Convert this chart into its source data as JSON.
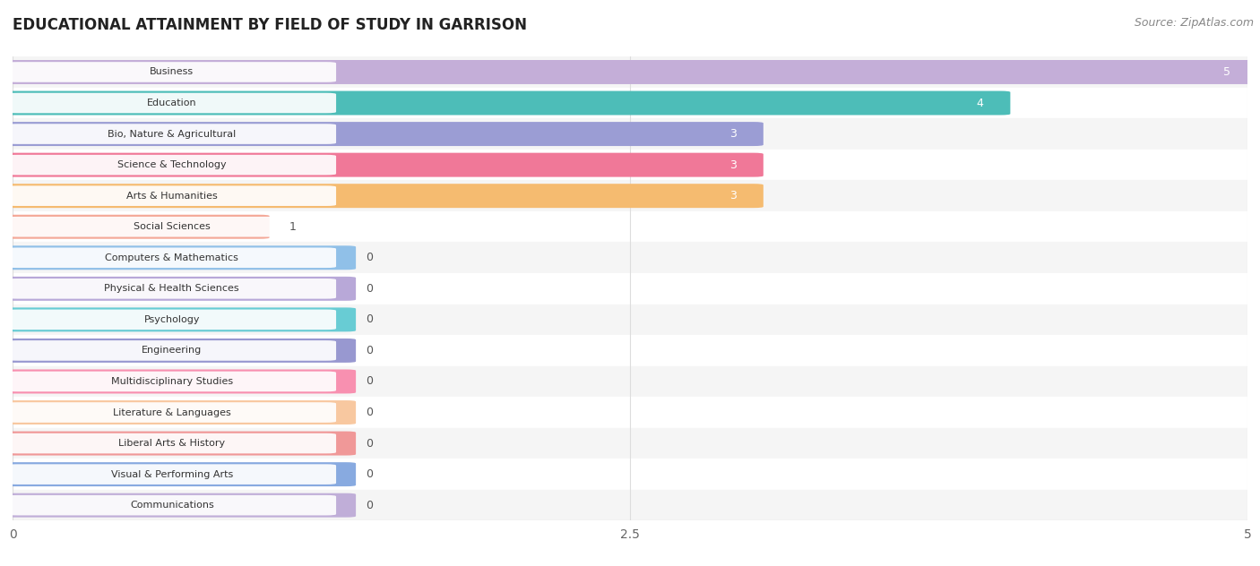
{
  "title": "EDUCATIONAL ATTAINMENT BY FIELD OF STUDY IN GARRISON",
  "source": "Source: ZipAtlas.com",
  "categories": [
    "Business",
    "Education",
    "Bio, Nature & Agricultural",
    "Science & Technology",
    "Arts & Humanities",
    "Social Sciences",
    "Computers & Mathematics",
    "Physical & Health Sciences",
    "Psychology",
    "Engineering",
    "Multidisciplinary Studies",
    "Literature & Languages",
    "Liberal Arts & History",
    "Visual & Performing Arts",
    "Communications"
  ],
  "values": [
    5,
    4,
    3,
    3,
    3,
    1,
    0,
    0,
    0,
    0,
    0,
    0,
    0,
    0,
    0
  ],
  "bar_colors": [
    "#c4aed8",
    "#4dbdb8",
    "#9b9dd4",
    "#f07898",
    "#f5bb70",
    "#f4a898",
    "#90c0e8",
    "#b8a8d8",
    "#68ccd4",
    "#9898d0",
    "#f890b0",
    "#f8c8a0",
    "#f09898",
    "#88aae0",
    "#c0aed8"
  ],
  "xlim": [
    0,
    5
  ],
  "xticks": [
    0,
    2.5,
    5
  ],
  "background_color": "#ffffff",
  "row_bg_even": "#f5f5f5",
  "row_bg_odd": "#ffffff",
  "title_fontsize": 12,
  "source_fontsize": 9,
  "bar_height": 0.7,
  "label_badge_color": "#ffffff",
  "label_text_color": "#333333",
  "value_text_color": "#555555"
}
